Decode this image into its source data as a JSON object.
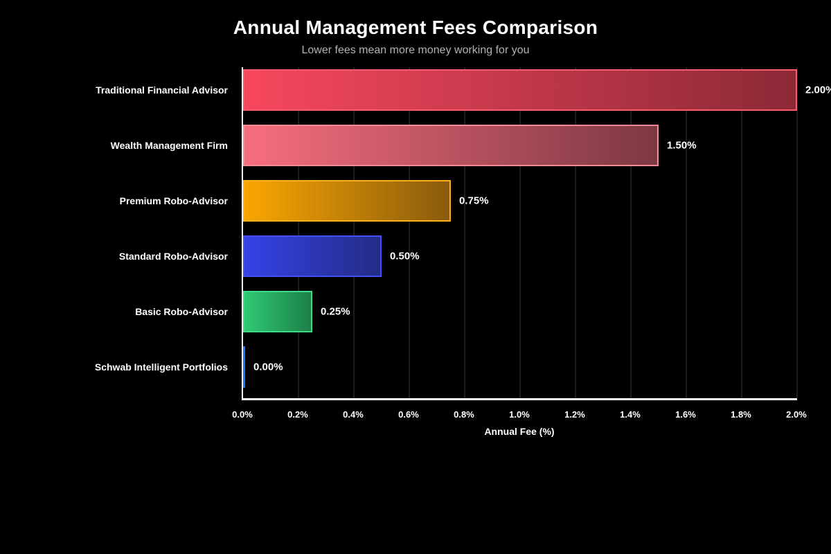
{
  "chart_data": {
    "type": "bar",
    "orientation": "horizontal",
    "title": "Annual Management Fees Comparison",
    "subtitle": "Lower fees mean more money working for you",
    "xlabel": "Annual Fee (%)",
    "xlim": [
      0.0,
      2.0
    ],
    "x_tick_step": 0.2,
    "x_ticks": [
      "0.0%",
      "0.2%",
      "0.4%",
      "0.6%",
      "0.8%",
      "1.0%",
      "1.2%",
      "1.4%",
      "1.6%",
      "1.8%",
      "2.0%"
    ],
    "grid": true,
    "legend": false,
    "categories": [
      "Traditional Financial Advisor",
      "Wealth Management Firm",
      "Premium Robo-Advisor",
      "Standard Robo-Advisor",
      "Basic Robo-Advisor",
      "Schwab Intelligent Portfolios"
    ],
    "values": [
      2.0,
      1.5,
      0.75,
      0.5,
      0.25,
      0.0
    ],
    "value_labels": [
      "2.00%",
      "1.50%",
      "0.75%",
      "0.50%",
      "0.25%",
      "0.00%"
    ],
    "bar_colors": [
      {
        "start": "#f7475e",
        "end": "#8c2936",
        "border": "#f85a6e"
      },
      {
        "start": "#f76e7e",
        "end": "#7d3843",
        "border": "#f98b97"
      },
      {
        "start": "#faa602",
        "end": "#8a5b0d",
        "border": "#fcb11d"
      },
      {
        "start": "#3642e8",
        "end": "#232c85",
        "border": "#4450f5"
      },
      {
        "start": "#2fca75",
        "end": "#1e8049",
        "border": "#3fdc87"
      },
      {
        "start": "#1e79f0",
        "end": "#1e79f0",
        "border": null
      }
    ],
    "colors": {
      "background": "#000000",
      "title_text": "#ffffff",
      "subtitle_text": "#b3b3b3",
      "axis": "#ffffff",
      "gridline": "#1e1e1e",
      "labels": "#ffffff"
    }
  }
}
